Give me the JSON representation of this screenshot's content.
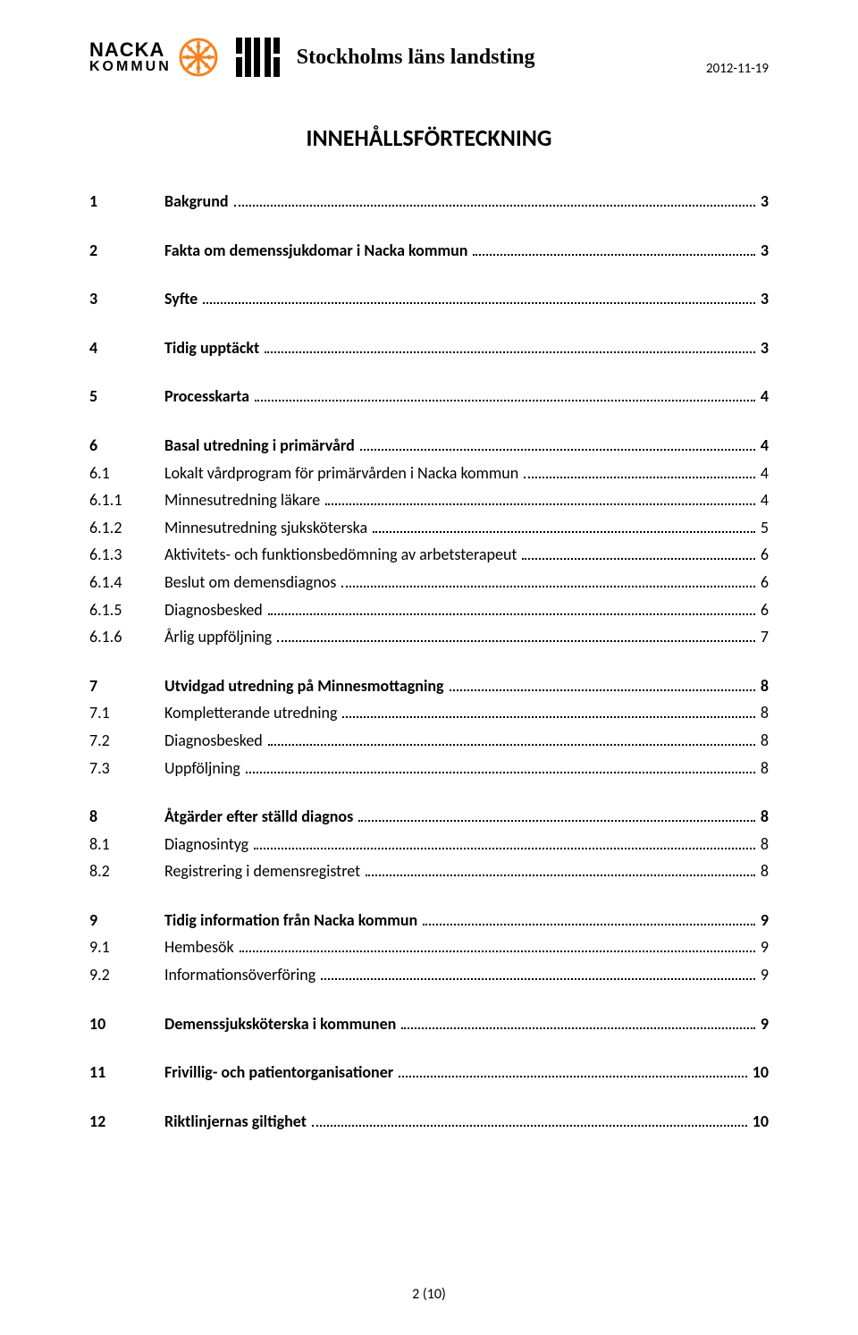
{
  "header": {
    "nacka": {
      "line1": "NACKA",
      "line2": "KOMMUN"
    },
    "sll": "Stockholms läns landsting",
    "date": "2012-11-19"
  },
  "title": "INNEHÅLLSFÖRTECKNING",
  "toc": [
    {
      "group": [
        {
          "num": "1",
          "label": "Bakgrund",
          "page": "3",
          "bold": true
        }
      ]
    },
    {
      "group": [
        {
          "num": "2",
          "label": "Fakta om demenssjukdomar i Nacka kommun",
          "page": "3",
          "bold": true
        }
      ]
    },
    {
      "group": [
        {
          "num": "3",
          "label": "Syfte",
          "page": "3",
          "bold": true
        }
      ]
    },
    {
      "group": [
        {
          "num": "4",
          "label": "Tidig upptäckt",
          "page": "3",
          "bold": true
        }
      ]
    },
    {
      "group": [
        {
          "num": "5",
          "label": "Processkarta",
          "page": "4",
          "bold": true
        }
      ]
    },
    {
      "group": [
        {
          "num": "6",
          "label": "Basal utredning i primärvård",
          "page": "4",
          "bold": true
        },
        {
          "num": "6.1",
          "label": "Lokalt vårdprogram för primärvården i Nacka kommun",
          "page": "4",
          "bold": false
        },
        {
          "num": "6.1.1",
          "label": "Minnesutredning läkare",
          "page": "4",
          "bold": false
        },
        {
          "num": "6.1.2",
          "label": "Minnesutredning sjuksköterska",
          "page": "5",
          "bold": false
        },
        {
          "num": "6.1.3",
          "label": "Aktivitets- och funktionsbedömning av arbetsterapeut",
          "page": "6",
          "bold": false
        },
        {
          "num": "6.1.4",
          "label": "Beslut om demensdiagnos",
          "page": "6",
          "bold": false
        },
        {
          "num": "6.1.5",
          "label": "Diagnosbesked",
          "page": "6",
          "bold": false
        },
        {
          "num": "6.1.6",
          "label": "Årlig uppföljning",
          "page": "7",
          "bold": false
        }
      ]
    },
    {
      "group": [
        {
          "num": "7",
          "label": "Utvidgad utredning på Minnesmottagning",
          "page": "8",
          "bold": true
        },
        {
          "num": "7.1",
          "label": "Kompletterande utredning",
          "page": "8",
          "bold": false
        },
        {
          "num": "7.2",
          "label": "Diagnosbesked",
          "page": "8",
          "bold": false
        },
        {
          "num": "7.3",
          "label": "Uppföljning",
          "page": "8",
          "bold": false
        }
      ]
    },
    {
      "group": [
        {
          "num": "8",
          "label": "Åtgärder efter ställd diagnos",
          "page": "8",
          "bold": true
        },
        {
          "num": "8.1",
          "label": "Diagnosintyg",
          "page": "8",
          "bold": false
        },
        {
          "num": "8.2",
          "label": "Registrering i demensregistret",
          "page": "8",
          "bold": false
        }
      ]
    },
    {
      "group": [
        {
          "num": "9",
          "label": "Tidig information från Nacka kommun",
          "page": "9",
          "bold": true
        },
        {
          "num": "9.1",
          "label": "Hembesök",
          "page": "9",
          "bold": false
        },
        {
          "num": "9.2",
          "label": "Informationsöverföring",
          "page": "9",
          "bold": false
        }
      ]
    },
    {
      "group": [
        {
          "num": "10",
          "label": "Demenssjuksköterska i kommunen",
          "page": "9",
          "bold": true
        }
      ]
    },
    {
      "group": [
        {
          "num": "11",
          "label": "Frivillig- och patientorganisationer",
          "page": "10",
          "bold": true
        }
      ]
    },
    {
      "group": [
        {
          "num": "12",
          "label": "Riktlinjernas giltighet",
          "page": "10",
          "bold": true
        }
      ]
    }
  ],
  "footer": "2 (10)",
  "colors": {
    "text": "#000000",
    "background": "#ffffff",
    "nacka_orange": "#f58220",
    "dot": "#000000"
  }
}
